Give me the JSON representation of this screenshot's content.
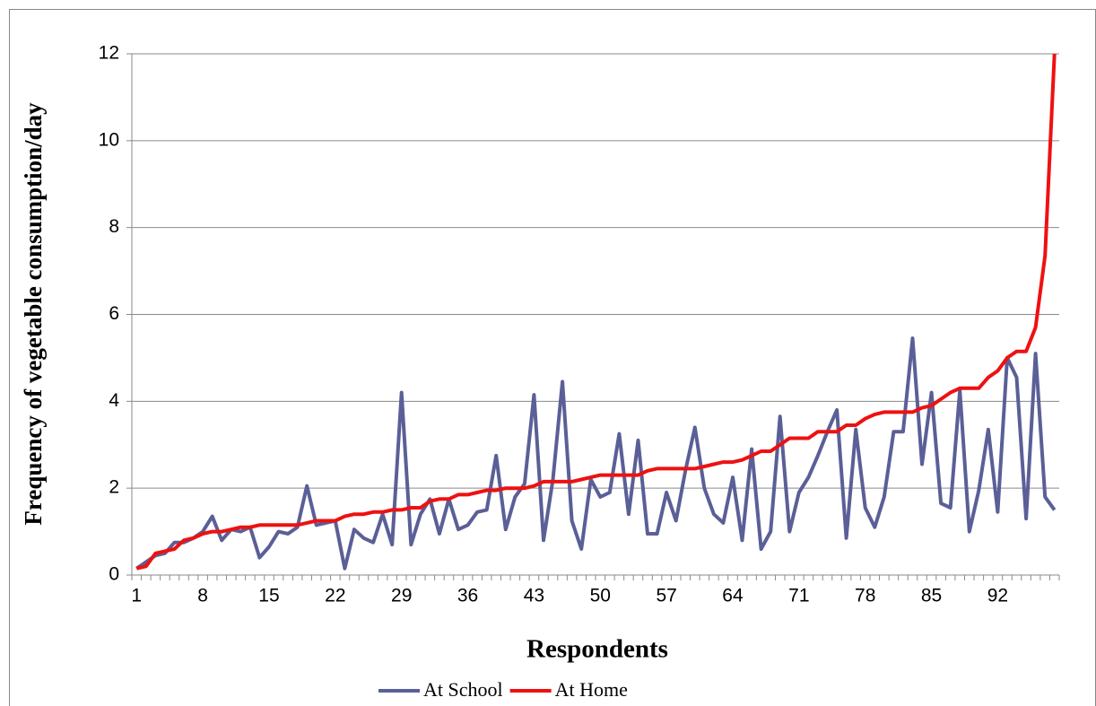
{
  "chart_data": {
    "type": "line",
    "y_label": "Frequency of vegetable consumption/day",
    "x_label": "Respondents",
    "categories": [
      "1",
      null,
      null,
      null,
      null,
      null,
      null,
      "8",
      null,
      null,
      null,
      null,
      null,
      null,
      "15",
      null,
      null,
      null,
      null,
      null,
      null,
      "22",
      null,
      null,
      null,
      null,
      null,
      null,
      "29",
      null,
      null,
      null,
      null,
      null,
      null,
      "36",
      null,
      null,
      null,
      null,
      null,
      null,
      "43",
      null,
      null,
      null,
      null,
      null,
      null,
      "50",
      null,
      null,
      null,
      null,
      null,
      null,
      "57",
      null,
      null,
      null,
      null,
      null,
      null,
      "64",
      null,
      null,
      null,
      null,
      null,
      null,
      "71",
      null,
      null,
      null,
      null,
      null,
      null,
      "78",
      null,
      null,
      null,
      null,
      null,
      null,
      "85",
      null,
      null,
      null,
      null,
      null,
      null,
      "92",
      null,
      null,
      null,
      null,
      null,
      null
    ],
    "series": [
      {
        "name": "At School",
        "color": "#5b5f97",
        "values": [
          0.15,
          0.3,
          0.45,
          0.5,
          0.75,
          0.75,
          0.85,
          1.0,
          1.35,
          0.8,
          1.05,
          1.0,
          1.1,
          0.4,
          0.65,
          1.0,
          0.95,
          1.1,
          2.05,
          1.15,
          1.2,
          1.25,
          0.15,
          1.05,
          0.85,
          0.75,
          1.4,
          0.7,
          4.2,
          0.7,
          1.4,
          1.75,
          0.95,
          1.75,
          1.05,
          1.15,
          1.45,
          1.5,
          2.75,
          1.05,
          1.8,
          2.1,
          4.15,
          0.8,
          2.2,
          4.45,
          1.25,
          0.6,
          2.2,
          1.8,
          1.9,
          3.25,
          1.4,
          3.1,
          0.95,
          0.95,
          1.9,
          1.25,
          2.4,
          3.4,
          2.0,
          1.4,
          1.2,
          2.25,
          0.8,
          2.9,
          0.6,
          1.0,
          3.65,
          1.0,
          1.9,
          2.25,
          2.75,
          3.3,
          3.8,
          0.85,
          3.35,
          1.55,
          1.1,
          1.8,
          3.3,
          3.3,
          5.45,
          2.55,
          4.2,
          1.65,
          1.55,
          4.25,
          1.0,
          1.95,
          3.35,
          1.45,
          5.0,
          4.55,
          1.3,
          5.1,
          1.8,
          1.5
        ]
      },
      {
        "name": "At Home",
        "color": "#ee1111",
        "values": [
          0.15,
          0.2,
          0.5,
          0.55,
          0.6,
          0.8,
          0.85,
          0.95,
          1.0,
          1.0,
          1.05,
          1.1,
          1.1,
          1.15,
          1.15,
          1.15,
          1.15,
          1.15,
          1.2,
          1.25,
          1.25,
          1.25,
          1.35,
          1.4,
          1.4,
          1.45,
          1.45,
          1.5,
          1.5,
          1.55,
          1.55,
          1.7,
          1.75,
          1.75,
          1.85,
          1.85,
          1.9,
          1.95,
          1.95,
          2.0,
          2.0,
          2.0,
          2.05,
          2.15,
          2.15,
          2.15,
          2.15,
          2.2,
          2.25,
          2.3,
          2.3,
          2.3,
          2.3,
          2.3,
          2.4,
          2.45,
          2.45,
          2.45,
          2.45,
          2.45,
          2.5,
          2.55,
          2.6,
          2.6,
          2.65,
          2.75,
          2.85,
          2.85,
          3.0,
          3.15,
          3.15,
          3.15,
          3.3,
          3.3,
          3.3,
          3.45,
          3.45,
          3.6,
          3.7,
          3.75,
          3.75,
          3.75,
          3.75,
          3.85,
          3.9,
          4.05,
          4.2,
          4.3,
          4.3,
          4.3,
          4.55,
          4.7,
          5.0,
          5.15,
          5.15,
          5.7,
          7.35,
          12
        ]
      }
    ],
    "ylim": [
      0,
      12
    ],
    "yticks": [
      0,
      2,
      4,
      6,
      8,
      10,
      12
    ],
    "grid": true,
    "legend": "bottom"
  }
}
